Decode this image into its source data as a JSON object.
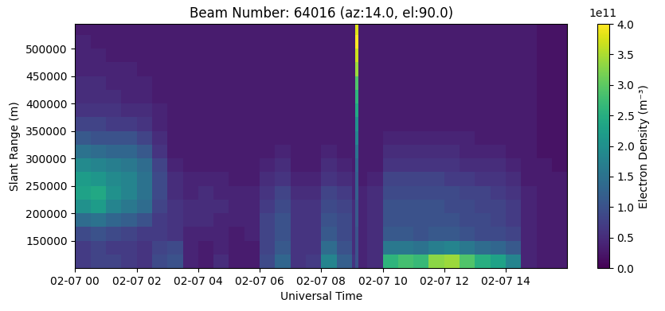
{
  "chart_data": {
    "type": "heatmap",
    "title": "Beam Number: 64016 (az:14.0, el:90.0)",
    "x_label": "Universal Time",
    "y_label": "Slant Range (m)",
    "colorbar_label": "Electron Density (m⁻³)",
    "colorbar_offset_text": "1e11",
    "color": "viridis",
    "x_edges": [
      0,
      0.5,
      1,
      1.5,
      2,
      2.5,
      3,
      3.5,
      4,
      4.5,
      5,
      5.5,
      6,
      6.5,
      7,
      7.5,
      8,
      8.5,
      9,
      9.1,
      9.2,
      9.5,
      10,
      10.5,
      11,
      11.5,
      12,
      12.5,
      13,
      13.5,
      14,
      14.5,
      15,
      15.5,
      16
    ],
    "y_edges": [
      100000,
      125000,
      150000,
      175000,
      200000,
      225000,
      250000,
      275000,
      300000,
      325000,
      350000,
      375000,
      400000,
      425000,
      450000,
      475000,
      500000,
      525000,
      550000
    ],
    "cells": [
      [
        0.7,
        0.8,
        0.8,
        0.7,
        0.6,
        0.9,
        1.0,
        0.4,
        0.3,
        0.5,
        0.3,
        0.3,
        0.9,
        1.3,
        0.6,
        0.7,
        1.8,
        1.2,
        0.6,
        1.0,
        0.4,
        0.5,
        2.6,
        2.8,
        2.7,
        3.3,
        3.4,
        2.9,
        2.5,
        2.3,
        1.8,
        0.4,
        0.3,
        0.3
      ],
      [
        0.7,
        0.8,
        0.7,
        0.7,
        0.6,
        0.8,
        0.9,
        0.4,
        0.3,
        0.4,
        0.3,
        0.3,
        0.8,
        1.1,
        0.6,
        0.6,
        1.4,
        1.0,
        0.5,
        1.0,
        0.4,
        0.5,
        1.6,
        1.6,
        1.5,
        1.7,
        1.8,
        1.6,
        1.4,
        1.3,
        1.1,
        0.4,
        0.3,
        0.3
      ],
      [
        0.9,
        1.0,
        0.9,
        0.8,
        0.7,
        0.7,
        0.6,
        0.4,
        0.4,
        0.4,
        0.3,
        0.4,
        0.8,
        1.0,
        0.6,
        0.6,
        1.1,
        0.9,
        0.5,
        1.0,
        0.4,
        0.5,
        1.1,
        1.1,
        1.0,
        1.1,
        1.1,
        1.0,
        0.9,
        0.9,
        0.8,
        0.4,
        0.3,
        0.3
      ],
      [
        1.4,
        1.5,
        1.3,
        1.2,
        1.0,
        0.7,
        0.6,
        0.5,
        0.5,
        0.4,
        0.4,
        0.4,
        0.8,
        1.0,
        0.6,
        0.6,
        1.0,
        0.9,
        0.5,
        1.1,
        0.4,
        0.5,
        1.0,
        1.0,
        1.0,
        1.0,
        1.0,
        0.9,
        0.9,
        0.8,
        0.7,
        0.4,
        0.3,
        0.3
      ],
      [
        2.0,
        2.2,
        1.8,
        1.6,
        1.4,
        0.8,
        0.6,
        0.5,
        0.5,
        0.5,
        0.4,
        0.4,
        0.7,
        0.9,
        0.6,
        0.6,
        0.9,
        0.8,
        0.5,
        1.1,
        0.4,
        0.5,
        1.0,
        1.0,
        1.0,
        1.0,
        0.9,
        0.9,
        0.8,
        0.8,
        0.7,
        0.4,
        0.3,
        0.3
      ],
      [
        2.3,
        2.4,
        2.0,
        1.8,
        1.5,
        0.9,
        0.5,
        0.4,
        0.5,
        0.4,
        0.4,
        0.4,
        0.6,
        0.8,
        0.5,
        0.5,
        0.8,
        0.7,
        0.4,
        1.2,
        0.4,
        0.5,
        0.9,
        0.9,
        0.9,
        0.9,
        0.9,
        0.8,
        0.8,
        0.7,
        0.6,
        0.4,
        0.3,
        0.3
      ],
      [
        2.2,
        2.1,
        1.9,
        1.8,
        1.5,
        0.9,
        0.5,
        0.4,
        0.4,
        0.4,
        0.3,
        0.3,
        0.5,
        0.6,
        0.4,
        0.4,
        0.6,
        0.5,
        0.4,
        1.2,
        0.3,
        0.4,
        0.8,
        0.8,
        0.8,
        0.8,
        0.7,
        0.7,
        0.6,
        0.6,
        0.5,
        0.3,
        0.3,
        0.3
      ],
      [
        1.9,
        1.8,
        1.7,
        1.6,
        1.4,
        0.8,
        0.4,
        0.3,
        0.3,
        0.3,
        0.3,
        0.3,
        0.4,
        0.5,
        0.3,
        0.3,
        0.5,
        0.4,
        0.3,
        1.3,
        0.3,
        0.3,
        0.6,
        0.6,
        0.6,
        0.6,
        0.6,
        0.5,
        0.5,
        0.5,
        0.4,
        0.3,
        0.3,
        0.2
      ],
      [
        1.5,
        1.4,
        1.3,
        1.3,
        1.1,
        0.6,
        0.3,
        0.3,
        0.3,
        0.3,
        0.3,
        0.3,
        0.3,
        0.4,
        0.3,
        0.3,
        0.4,
        0.3,
        0.3,
        1.5,
        0.3,
        0.3,
        0.5,
        0.5,
        0.5,
        0.5,
        0.5,
        0.4,
        0.4,
        0.4,
        0.3,
        0.3,
        0.2,
        0.2
      ],
      [
        1.1,
        1.0,
        1.0,
        1.0,
        0.8,
        0.5,
        0.3,
        0.3,
        0.3,
        0.3,
        0.3,
        0.3,
        0.3,
        0.3,
        0.3,
        0.3,
        0.3,
        0.3,
        0.3,
        1.8,
        0.3,
        0.3,
        0.4,
        0.4,
        0.4,
        0.4,
        0.4,
        0.4,
        0.3,
        0.3,
        0.3,
        0.3,
        0.2,
        0.2
      ],
      [
        0.8,
        0.8,
        0.7,
        0.7,
        0.6,
        0.4,
        0.3,
        0.3,
        0.3,
        0.3,
        0.3,
        0.3,
        0.3,
        0.3,
        0.3,
        0.3,
        0.3,
        0.3,
        0.3,
        2.0,
        0.3,
        0.3,
        0.3,
        0.3,
        0.3,
        0.3,
        0.3,
        0.3,
        0.3,
        0.3,
        0.3,
        0.3,
        0.2,
        0.2
      ],
      [
        0.6,
        0.6,
        0.6,
        0.5,
        0.5,
        0.4,
        0.3,
        0.3,
        0.3,
        0.3,
        0.3,
        0.3,
        0.3,
        0.3,
        0.3,
        0.3,
        0.3,
        0.3,
        0.3,
        2.4,
        0.3,
        0.3,
        0.3,
        0.3,
        0.3,
        0.3,
        0.3,
        0.3,
        0.3,
        0.3,
        0.3,
        0.3,
        0.2,
        0.2
      ],
      [
        0.5,
        0.5,
        0.5,
        0.4,
        0.4,
        0.3,
        0.3,
        0.3,
        0.3,
        0.3,
        0.3,
        0.3,
        0.3,
        0.3,
        0.3,
        0.3,
        0.3,
        0.3,
        0.3,
        2.6,
        0.3,
        0.3,
        0.3,
        0.3,
        0.3,
        0.3,
        0.3,
        0.3,
        0.3,
        0.3,
        0.3,
        0.3,
        0.2,
        0.2
      ],
      [
        0.5,
        0.5,
        0.4,
        0.4,
        0.4,
        0.3,
        0.3,
        0.3,
        0.3,
        0.3,
        0.3,
        0.3,
        0.3,
        0.3,
        0.3,
        0.3,
        0.3,
        0.3,
        0.3,
        2.9,
        0.3,
        0.3,
        0.3,
        0.3,
        0.3,
        0.3,
        0.3,
        0.3,
        0.3,
        0.3,
        0.3,
        0.3,
        0.2,
        0.2
      ],
      [
        0.4,
        0.4,
        0.4,
        0.4,
        0.3,
        0.3,
        0.3,
        0.3,
        0.3,
        0.3,
        0.3,
        0.3,
        0.3,
        0.3,
        0.3,
        0.3,
        0.3,
        0.3,
        0.3,
        3.4,
        0.3,
        0.3,
        0.3,
        0.3,
        0.3,
        0.3,
        0.3,
        0.3,
        0.3,
        0.3,
        0.3,
        0.3,
        0.2,
        0.2
      ],
      [
        0.4,
        0.4,
        0.3,
        0.3,
        0.3,
        0.3,
        0.3,
        0.3,
        0.3,
        0.3,
        0.3,
        0.3,
        0.3,
        0.3,
        0.3,
        0.3,
        0.3,
        0.3,
        0.3,
        3.7,
        0.3,
        0.3,
        0.3,
        0.3,
        0.3,
        0.3,
        0.3,
        0.3,
        0.3,
        0.3,
        0.3,
        0.3,
        0.2,
        0.2
      ],
      [
        0.4,
        0.3,
        0.3,
        0.3,
        0.3,
        0.3,
        0.3,
        0.3,
        0.3,
        0.3,
        0.3,
        0.3,
        0.3,
        0.3,
        0.3,
        0.3,
        0.3,
        0.3,
        0.3,
        4.0,
        0.3,
        0.3,
        0.3,
        0.3,
        0.3,
        0.3,
        0.3,
        0.3,
        0.3,
        0.3,
        0.3,
        0.3,
        0.2,
        0.2
      ],
      [
        0.3,
        0.3,
        0.3,
        0.3,
        0.3,
        0.3,
        0.3,
        0.3,
        0.3,
        0.3,
        0.3,
        0.3,
        0.3,
        0.3,
        0.3,
        0.3,
        0.3,
        0.3,
        0.3,
        3.8,
        0.3,
        0.3,
        0.3,
        0.3,
        0.3,
        0.3,
        0.3,
        0.3,
        0.3,
        0.3,
        0.3,
        0.3,
        0.2,
        0.2
      ]
    ],
    "xlim": [
      0,
      16
    ],
    "xticks": [
      {
        "value": 0,
        "label": "02-07 00"
      },
      {
        "value": 2,
        "label": "02-07 02"
      },
      {
        "value": 4,
        "label": "02-07 04"
      },
      {
        "value": 6,
        "label": "02-07 06"
      },
      {
        "value": 8,
        "label": "02-07 08"
      },
      {
        "value": 10,
        "label": "02-07 10"
      },
      {
        "value": 12,
        "label": "02-07 12"
      },
      {
        "value": 14,
        "label": "02-07 14"
      }
    ],
    "ylim": [
      100000,
      545000
    ],
    "yticks": [
      150000,
      200000,
      250000,
      300000,
      350000,
      400000,
      450000,
      500000
    ],
    "colorbar_lim": [
      0,
      4
    ],
    "colorbar_ticks": [
      {
        "value": 0,
        "label": "0.0"
      },
      {
        "value": 0.5,
        "label": "0.5"
      },
      {
        "value": 1,
        "label": "1.0"
      },
      {
        "value": 1.5,
        "label": "1.5"
      },
      {
        "value": 2,
        "label": "2.0"
      },
      {
        "value": 2.5,
        "label": "2.5"
      },
      {
        "value": 3,
        "label": "3.0"
      },
      {
        "value": 3.5,
        "label": "3.5"
      },
      {
        "value": 4,
        "label": "4.0"
      }
    ],
    "grid": false
  }
}
